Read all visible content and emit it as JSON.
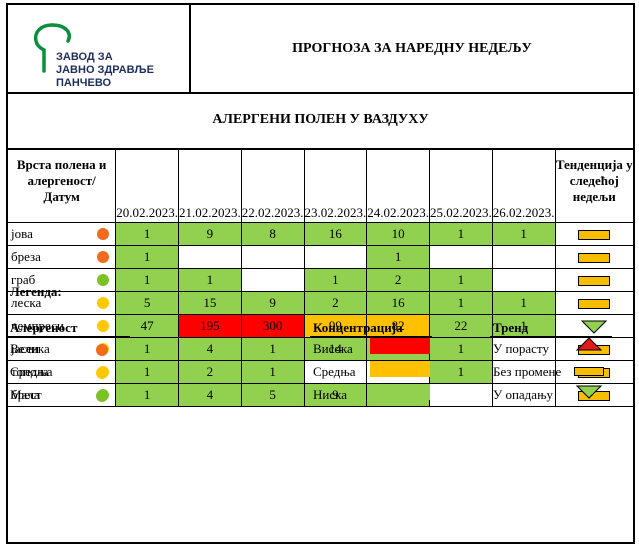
{
  "logo": {
    "line1": "ЗАВОД ЗА",
    "line2": "ЈАВНО ЗДРАВЉЕ",
    "line3": "ПАНЧЕВО",
    "color": "#0a8f3c"
  },
  "header": {
    "title": "ПРОГНОЗА ЗА НАРЕДНУ НЕДЕЉУ"
  },
  "band": {
    "title": "АЛЕРГЕНИ ПОЛЕН У ВАЗДУХУ"
  },
  "table": {
    "label_col": "Врста полена и алергеност/ Датум",
    "trend_col": "Тенденција у следећој недељи",
    "dates": [
      "20.02.2023.",
      "21.02.2023.",
      "22.02.2023.",
      "23.02.2023.",
      "24.02.2023.",
      "25.02.2023.",
      "26.02.2023."
    ],
    "rows": [
      {
        "name": "јова",
        "allergenicity": "high",
        "values": [
          "1",
          "9",
          "8",
          "16",
          "10",
          "1",
          "1"
        ],
        "levels": [
          "low",
          "low",
          "low",
          "low",
          "low",
          "low",
          "low"
        ],
        "trend": "flat"
      },
      {
        "name": "бреза",
        "allergenicity": "high",
        "values": [
          "1",
          "",
          "",
          "",
          "1",
          "",
          ""
        ],
        "levels": [
          "low",
          "none",
          "none",
          "none",
          "low",
          "none",
          "none"
        ],
        "trend": "flat"
      },
      {
        "name": "граб",
        "allergenicity": "low",
        "values": [
          "1",
          "1",
          "",
          "1",
          "2",
          "1",
          ""
        ],
        "levels": [
          "low",
          "low",
          "none",
          "low",
          "low",
          "low",
          "none"
        ],
        "trend": "flat"
      },
      {
        "name": "леска",
        "allergenicity": "medium",
        "values": [
          "5",
          "15",
          "9",
          "2",
          "16",
          "1",
          "1"
        ],
        "levels": [
          "low",
          "low",
          "low",
          "low",
          "low",
          "low",
          "low"
        ],
        "trend": "flat"
      },
      {
        "name": "чемпреси",
        "allergenicity": "medium",
        "values": [
          "47",
          "195",
          "300",
          "99",
          "82",
          "22",
          "1"
        ],
        "levels": [
          "low",
          "high",
          "high",
          "medium",
          "medium",
          "low",
          "low"
        ],
        "trend": "down"
      },
      {
        "name": "јасен",
        "allergenicity": "medium",
        "values": [
          "1",
          "4",
          "1",
          "14",
          "11",
          "1",
          ""
        ],
        "levels": [
          "low",
          "low",
          "low",
          "low",
          "low",
          "low",
          "none"
        ],
        "trend": "flat"
      },
      {
        "name": "топола",
        "allergenicity": "medium",
        "values": [
          "1",
          "2",
          "1",
          "",
          "",
          "1",
          ""
        ],
        "levels": [
          "low",
          "low",
          "low",
          "none",
          "none",
          "low",
          "none"
        ],
        "trend": "flat"
      },
      {
        "name": "брест",
        "allergenicity": "low",
        "values": [
          "1",
          "4",
          "5",
          "9",
          "14",
          "",
          ""
        ],
        "levels": [
          "low",
          "low",
          "low",
          "low",
          "low",
          "none",
          "none"
        ],
        "trend": "flat"
      }
    ]
  },
  "legend": {
    "title": "Легенда:",
    "allergenicity": {
      "title": "Алергеност",
      "items": [
        "Велика",
        "Средња",
        "Мала"
      ]
    },
    "concentration": {
      "title": "Концентрација",
      "items": [
        "Висока",
        "Средња",
        "Ниска"
      ]
    },
    "trend": {
      "title": "Тренд",
      "items": [
        "У порасту",
        "Без промене",
        "У опадању"
      ]
    }
  },
  "colors": {
    "level_high": "#ff0000",
    "level_medium": "#ffc000",
    "level_low": "#92d050",
    "dot_high": "#f26a1b",
    "dot_medium": "#ffc800",
    "dot_low": "#7cc225",
    "trend_up": "#e31a1c",
    "trend_flat": "#f7be00",
    "trend_down": "#92d050"
  }
}
